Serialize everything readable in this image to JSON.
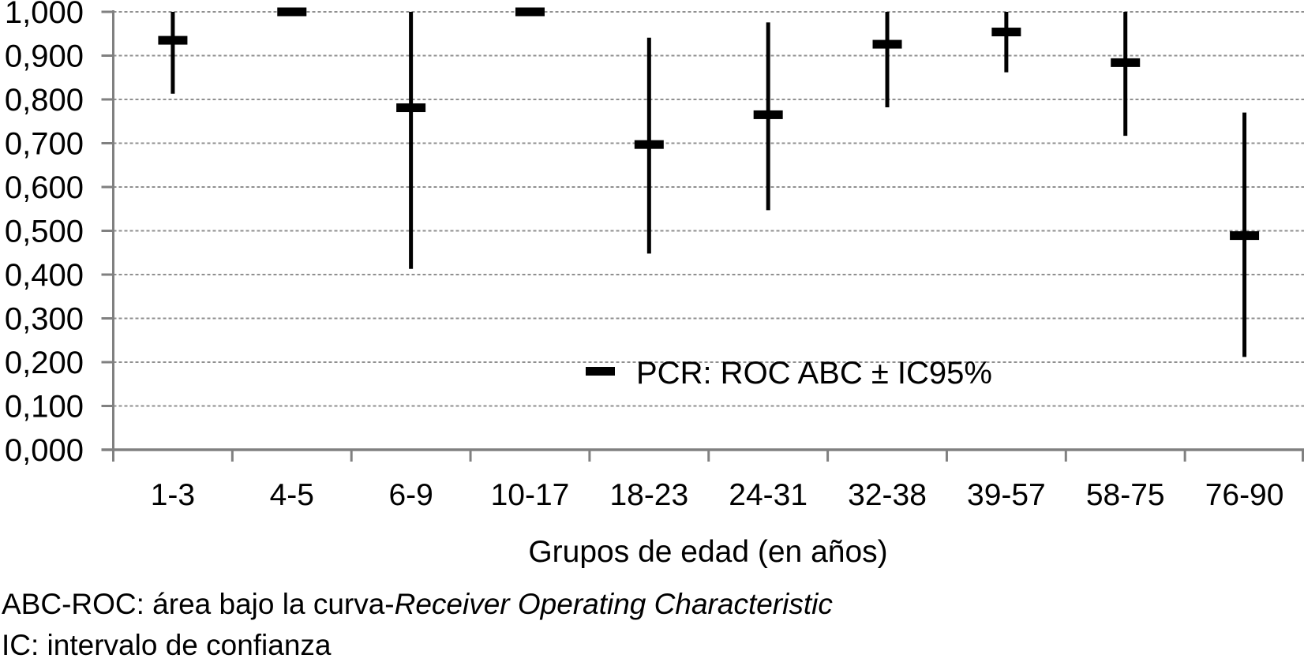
{
  "chart_data": {
    "type": "errorbar",
    "title": "",
    "categories": [
      "1-3",
      "4-5",
      "6-9",
      "10-17",
      "18-23",
      "24-31",
      "32-38",
      "39-57",
      "58-75",
      "76-90"
    ],
    "series": [
      {
        "name": "PCR: ROC ABC ± IC95%",
        "values": [
          0.935,
          1.0,
          0.781,
          1.0,
          0.697,
          0.765,
          0.926,
          0.954,
          0.884,
          0.489
        ],
        "ci_low": [
          0.813,
          1.0,
          0.413,
          1.0,
          0.448,
          0.547,
          0.782,
          0.862,
          0.717,
          0.212
        ],
        "ci_high": [
          1.0,
          1.0,
          1.0,
          1.0,
          0.941,
          0.976,
          1.0,
          1.0,
          1.0,
          0.77
        ]
      }
    ],
    "xlabel": "Grupos de edad (en años)",
    "ylabel": "",
    "ylim": [
      0,
      1
    ],
    "ytick_step": 0.1,
    "ytick_labels": [
      "0,000",
      "0,100",
      "0,200",
      "0,300",
      "0,400",
      "0,500",
      "0,600",
      "0,700",
      "0,800",
      "0,900",
      "1,000"
    ],
    "grid": "horizontal-dashed",
    "legend_position": "inside-lower-center",
    "decimal_separator": ",",
    "colors": {
      "marker": "#000000",
      "whisker": "#000000",
      "axis": "#808080",
      "gridline": "#8f8f8f",
      "text": "#000000"
    }
  },
  "legend": {
    "label": "PCR: ROC ABC ± IC95%"
  },
  "xaxis": {
    "title": "Grupos de edad (en años)"
  },
  "footnotes": {
    "line1_normal": "ABC-ROC: área bajo la curva-",
    "line1_italic": "Receiver Operating Characteristic",
    "line2": "IC: intervalo de confianza"
  }
}
